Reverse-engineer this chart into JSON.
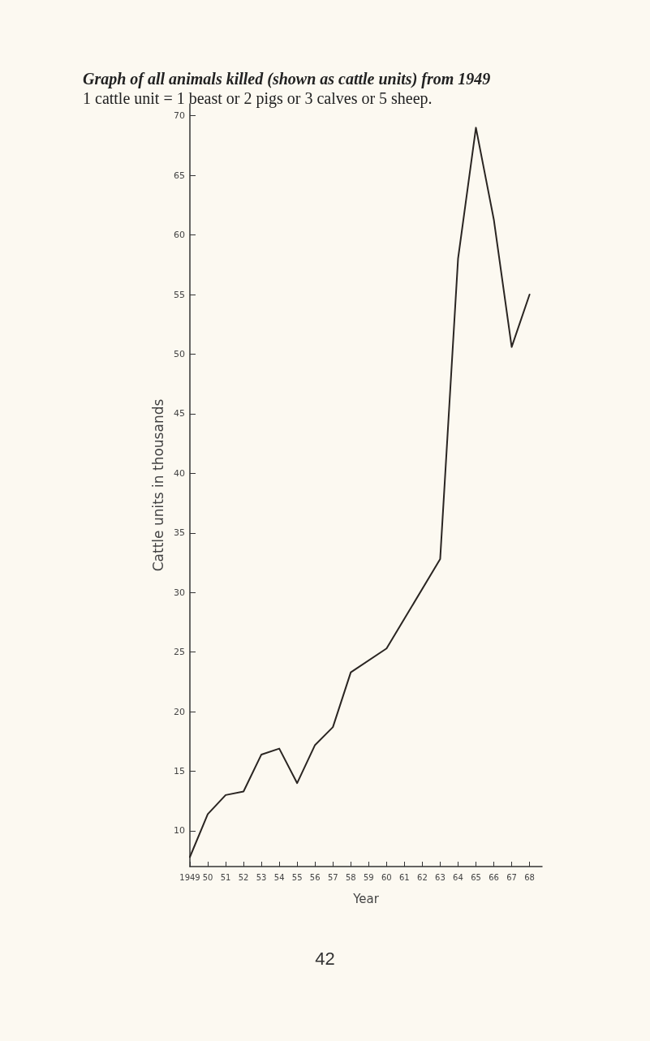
{
  "chart_data": {
    "type": "line",
    "title": "Graph of all animals killed (shown as cattle units) from 1949",
    "subtitle": "1 cattle unit = 1 beast or 2 pigs or 3 calves or 5 sheep.",
    "xlabel": "Year",
    "ylabel": "Cattle units in thousands",
    "annotations": [
      "42"
    ],
    "x": [
      1949,
      1950,
      1951,
      1952,
      1953,
      1954,
      1955,
      1956,
      1957,
      1958,
      1960,
      1963,
      1964,
      1965,
      1966,
      1967,
      1968
    ],
    "series": [
      {
        "color": "#2a2522",
        "values": [
          7.8,
          11.4,
          13.0,
          13.3,
          16.4,
          16.9,
          14.0,
          17.2,
          18.7,
          23.3,
          25.3,
          32.8,
          58,
          69,
          61.3,
          50.6,
          55
        ]
      }
    ],
    "xlim": [
      1949,
      1968.7
    ],
    "xticks": [
      {
        "value": 1949,
        "label": "1949"
      },
      {
        "value": 1950,
        "label": "50"
      },
      {
        "value": 1951,
        "label": "51"
      },
      {
        "value": 1952,
        "label": "52"
      },
      {
        "value": 1953,
        "label": "53"
      },
      {
        "value": 1954,
        "label": "54"
      },
      {
        "value": 1955,
        "label": "55"
      },
      {
        "value": 1956,
        "label": "56"
      },
      {
        "value": 1957,
        "label": "57"
      },
      {
        "value": 1958,
        "label": "58"
      },
      {
        "value": 1959,
        "label": "59"
      },
      {
        "value": 1960,
        "label": "60"
      },
      {
        "value": 1961,
        "label": "61"
      },
      {
        "value": 1962,
        "label": "62"
      },
      {
        "value": 1963,
        "label": "63"
      },
      {
        "value": 1964,
        "label": "64"
      },
      {
        "value": 1965,
        "label": "65"
      },
      {
        "value": 1966,
        "label": "66"
      },
      {
        "value": 1967,
        "label": "67"
      },
      {
        "value": 1968,
        "label": "68"
      }
    ],
    "ylim": [
      7,
      71
    ],
    "yticks": [
      10,
      15,
      20,
      25,
      30,
      35,
      40,
      45,
      50,
      55,
      60,
      65,
      70
    ],
    "grid": false,
    "marker": "none",
    "line_style": "solid"
  }
}
